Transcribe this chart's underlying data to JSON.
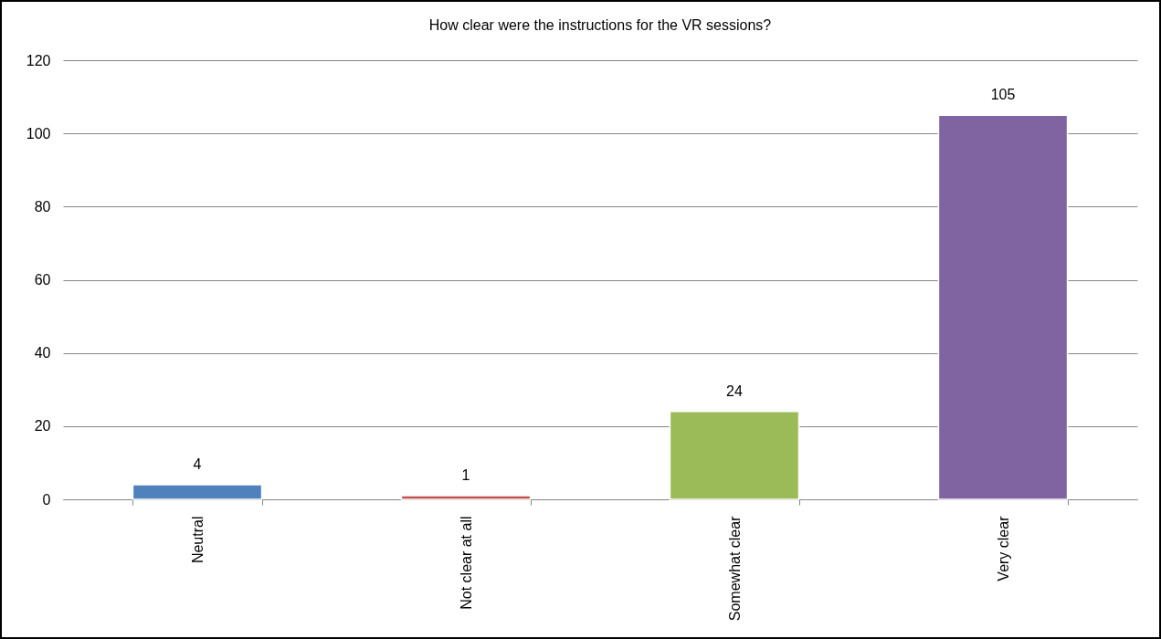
{
  "chart_data": {
    "type": "bar",
    "title": "How clear were the instructions for the VR sessions?",
    "categories": [
      "Neutral",
      "Not clear at all",
      "Somewhat clear",
      "Very clear"
    ],
    "values": [
      4,
      1,
      24,
      105
    ],
    "colors": [
      "#4f81bd",
      "#c0504d",
      "#9bbb59",
      "#8064a2"
    ],
    "ylim": [
      0,
      120
    ],
    "yticks": [
      0,
      20,
      40,
      60,
      80,
      100,
      120
    ],
    "grid": "y",
    "data_labels": true
  }
}
